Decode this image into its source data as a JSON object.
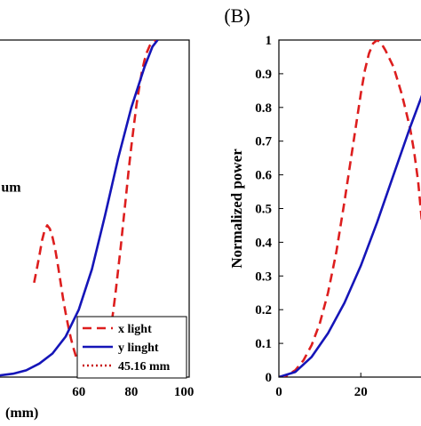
{
  "chart_data": [
    {
      "type": "line",
      "panel_label": "",
      "xlabel": "(mm)",
      "ylabel": "",
      "xlim": [
        28,
        102
      ],
      "ylim": [
        0,
        1
      ],
      "x_ticks": [
        60,
        80,
        100
      ],
      "grid": false,
      "annotations": [
        {
          "text": "um",
          "x": 30.5,
          "y": 0.55
        }
      ],
      "legend": {
        "placement": "bottom-right",
        "entries": [
          {
            "label": "x light",
            "style": "dashed",
            "color": "#dd1e1e"
          },
          {
            "label": "y linght",
            "style": "solid",
            "color": "#1515b8"
          },
          {
            "label": "45.16 mm",
            "style": "dotted",
            "color": "#c81414"
          }
        ]
      },
      "series": [
        {
          "name": "x light",
          "style": "dashed",
          "color": "#dd1e1e",
          "x": [
            43,
            44,
            45,
            46,
            47,
            48,
            49,
            50,
            51,
            52,
            53,
            54,
            55,
            56,
            57,
            58,
            59,
            60,
            61,
            62,
            63,
            64,
            65,
            66,
            67,
            68,
            69,
            70,
            71,
            72,
            73,
            74,
            75,
            76,
            77,
            78,
            79,
            80,
            81,
            82,
            83,
            84,
            85,
            86,
            87,
            88,
            89,
            90
          ],
          "y": [
            0.28,
            0.32,
            0.36,
            0.405,
            0.435,
            0.45,
            0.44,
            0.415,
            0.38,
            0.335,
            0.285,
            0.235,
            0.19,
            0.15,
            0.115,
            0.085,
            0.06,
            0.04,
            0.025,
            0.013,
            0.006,
            0.002,
            0.0,
            0.0,
            0.003,
            0.012,
            0.028,
            0.055,
            0.09,
            0.135,
            0.19,
            0.25,
            0.32,
            0.39,
            0.465,
            0.54,
            0.615,
            0.685,
            0.75,
            0.81,
            0.86,
            0.905,
            0.94,
            0.965,
            0.983,
            0.994,
            0.999,
            1.0
          ]
        },
        {
          "name": "y linght",
          "style": "solid",
          "color": "#1515b8",
          "x": [
            30,
            35,
            40,
            45,
            50,
            55,
            60,
            65,
            70,
            75,
            80,
            85,
            88,
            90
          ],
          "y": [
            0.005,
            0.01,
            0.02,
            0.04,
            0.07,
            0.12,
            0.2,
            0.32,
            0.48,
            0.65,
            0.8,
            0.92,
            0.98,
            1.0
          ]
        }
      ]
    },
    {
      "type": "line",
      "panel_label": "(B)",
      "xlabel": "",
      "ylabel": "Normalized power",
      "xlim": [
        0,
        36
      ],
      "ylim": [
        0,
        1
      ],
      "x_ticks": [
        0,
        20
      ],
      "y_ticks": [
        0,
        0.1,
        0.2,
        0.3,
        0.4,
        0.5,
        0.6,
        0.7,
        0.8,
        0.9,
        1
      ],
      "grid": false,
      "series": [
        {
          "name": "x light",
          "style": "dashed",
          "color": "#dd1e1e",
          "x": [
            0,
            2,
            4,
            6,
            8,
            10,
            12,
            14,
            16,
            18,
            20,
            21,
            22,
            23,
            24,
            25,
            26,
            28,
            30,
            32,
            33,
            34,
            35
          ],
          "y": [
            0.0,
            0.005,
            0.02,
            0.05,
            0.095,
            0.16,
            0.25,
            0.37,
            0.52,
            0.68,
            0.84,
            0.91,
            0.96,
            0.99,
            1.0,
            0.99,
            0.97,
            0.92,
            0.84,
            0.74,
            0.67,
            0.58,
            0.45
          ]
        },
        {
          "name": "y linght",
          "style": "solid",
          "color": "#1515b8",
          "x": [
            0,
            4,
            8,
            12,
            16,
            20,
            24,
            28,
            32,
            36
          ],
          "y": [
            0.0,
            0.015,
            0.06,
            0.13,
            0.22,
            0.33,
            0.46,
            0.6,
            0.74,
            0.87
          ]
        }
      ]
    }
  ]
}
